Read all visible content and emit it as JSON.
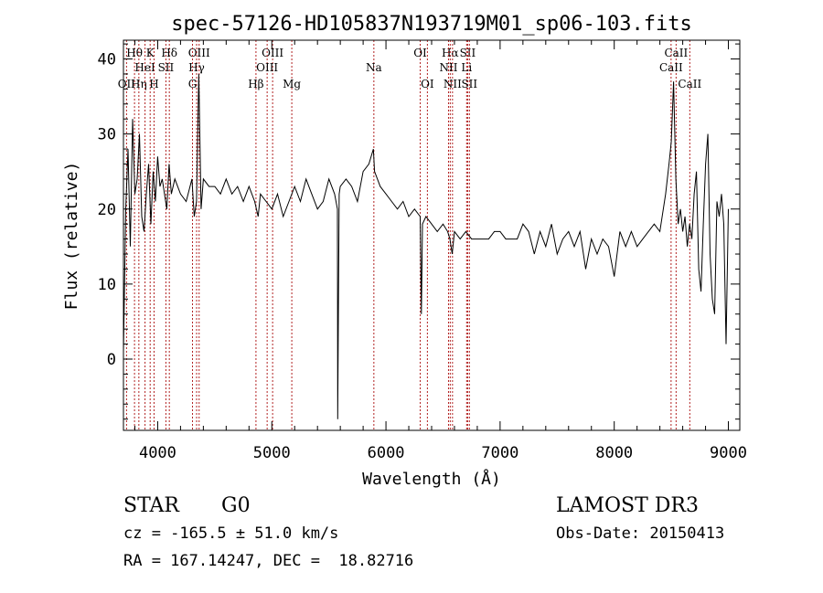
{
  "chart_data": {
    "type": "line",
    "title": "spec-57126-HD105837N193719M01_sp06-103.fits",
    "xlabel": "Wavelength (Å)",
    "ylabel": "Flux (relative)",
    "xlim": [
      3700,
      9100
    ],
    "ylim": [
      -9.5,
      42.5
    ],
    "x_ticks": [
      4000,
      5000,
      6000,
      7000,
      8000,
      9000
    ],
    "y_ticks": [
      0,
      10,
      20,
      30,
      40
    ],
    "grid": false,
    "series": [
      {
        "x": [
          3700,
          3720,
          3740,
          3760,
          3780,
          3800,
          3820,
          3840,
          3860,
          3880,
          3900,
          3920,
          3940,
          3960,
          3980,
          4000,
          4020,
          4040,
          4060,
          4080,
          4100,
          4120,
          4150,
          4200,
          4250,
          4300,
          4320,
          4340,
          4360,
          4380,
          4400,
          4450,
          4500,
          4550,
          4600,
          4650,
          4700,
          4750,
          4800,
          4850,
          4880,
          4900,
          4950,
          5000,
          5050,
          5100,
          5150,
          5200,
          5250,
          5300,
          5350,
          5400,
          5450,
          5500,
          5550,
          5575,
          5577,
          5590,
          5600,
          5650,
          5700,
          5750,
          5800,
          5850,
          5890,
          5900,
          5950,
          6000,
          6050,
          6100,
          6150,
          6200,
          6250,
          6300,
          6310,
          6320,
          6350,
          6400,
          6450,
          6500,
          6540,
          6560,
          6580,
          6600,
          6650,
          6700,
          6750,
          6800,
          6850,
          6900,
          6950,
          7000,
          7050,
          7100,
          7150,
          7200,
          7250,
          7300,
          7350,
          7400,
          7450,
          7500,
          7550,
          7600,
          7650,
          7700,
          7750,
          7800,
          7850,
          7900,
          7950,
          8000,
          8050,
          8100,
          8150,
          8200,
          8250,
          8300,
          8350,
          8400,
          8450,
          8480,
          8500,
          8520,
          8540,
          8560,
          8580,
          8600,
          8620,
          8640,
          8660,
          8680,
          8700,
          8720,
          8740,
          8760,
          8780,
          8800,
          8820,
          8840,
          8860,
          8880,
          8900,
          8920,
          8940,
          8960,
          8980,
          9000
        ],
        "y": [
          1,
          20,
          28,
          15,
          32,
          22,
          24,
          30,
          19,
          17,
          22,
          26,
          18,
          25,
          21,
          27,
          23,
          24,
          22,
          20,
          26,
          22,
          24,
          22,
          21,
          24,
          19,
          21,
          38,
          20,
          24,
          23,
          23,
          22,
          24,
          22,
          23,
          21,
          23,
          21,
          19,
          22,
          21,
          20,
          22,
          19,
          21,
          23,
          21,
          24,
          22,
          20,
          21,
          24,
          22,
          20,
          -8,
          22,
          23,
          24,
          23,
          21,
          25,
          26,
          28,
          25,
          23,
          22,
          21,
          20,
          21,
          19,
          20,
          19,
          6,
          18,
          19,
          18,
          17,
          18,
          17,
          16,
          14,
          17,
          16,
          17,
          16,
          16,
          16,
          16,
          17,
          17,
          16,
          16,
          16,
          18,
          17,
          14,
          17,
          15,
          18,
          14,
          16,
          17,
          15,
          17,
          12,
          16,
          14,
          16,
          15,
          11,
          17,
          15,
          17,
          15,
          16,
          17,
          18,
          17,
          22,
          26,
          29,
          37,
          24,
          18,
          20,
          17,
          19,
          15,
          18,
          16,
          22,
          25,
          12,
          9,
          18,
          26,
          30,
          14,
          8,
          6,
          21,
          19,
          22,
          18,
          2,
          20
        ]
      }
    ],
    "line_ids": [
      {
        "label": "OII",
        "x": 3727,
        "row": 3
      },
      {
        "label": "Hθ",
        "x": 3797,
        "row": 1
      },
      {
        "label": "Hη",
        "x": 3835,
        "row": 3
      },
      {
        "label": "K",
        "x": 3934,
        "row": 1
      },
      {
        "label": "HeI",
        "x": 3889,
        "row": 2
      },
      {
        "label": "H",
        "x": 3968,
        "row": 3
      },
      {
        "label": "SII",
        "x": 4072,
        "row": 2
      },
      {
        "label": "Hδ",
        "x": 4102,
        "row": 1
      },
      {
        "label": "OIII",
        "x": 4363,
        "row": 1
      },
      {
        "label": "Hγ",
        "x": 4341,
        "row": 2
      },
      {
        "label": "G",
        "x": 4305,
        "row": 3
      },
      {
        "label": "Hβ",
        "x": 4861,
        "row": 3
      },
      {
        "label": "OIII",
        "x": 5007,
        "row": 1
      },
      {
        "label": "OIII",
        "x": 4959,
        "row": 2
      },
      {
        "label": "Mg",
        "x": 5175,
        "row": 3
      },
      {
        "label": "Na",
        "x": 5894,
        "row": 2
      },
      {
        "label": "OI",
        "x": 6300,
        "row": 1
      },
      {
        "label": "OI",
        "x": 6363,
        "row": 3
      },
      {
        "label": "Hα",
        "x": 6563,
        "row": 1
      },
      {
        "label": "NII",
        "x": 6548,
        "row": 2
      },
      {
        "label": "NII",
        "x": 6583,
        "row": 3
      },
      {
        "label": "SII",
        "x": 6716,
        "row": 1
      },
      {
        "label": "Li",
        "x": 6707,
        "row": 2
      },
      {
        "label": "SII",
        "x": 6731,
        "row": 3
      },
      {
        "label": "CaII",
        "x": 8542,
        "row": 1
      },
      {
        "label": "CaII",
        "x": 8498,
        "row": 2
      },
      {
        "label": "CaII",
        "x": 8662,
        "row": 3
      }
    ]
  },
  "info": {
    "object_class": "STAR",
    "subclass": "G0",
    "survey": "LAMOST DR3",
    "velocity_line": "cz = -165.5 ± 51.0 km/s",
    "obs_date_line": "Obs-Date: 20150413",
    "coords_line": "RA = 167.14247, DEC =  18.82716"
  }
}
